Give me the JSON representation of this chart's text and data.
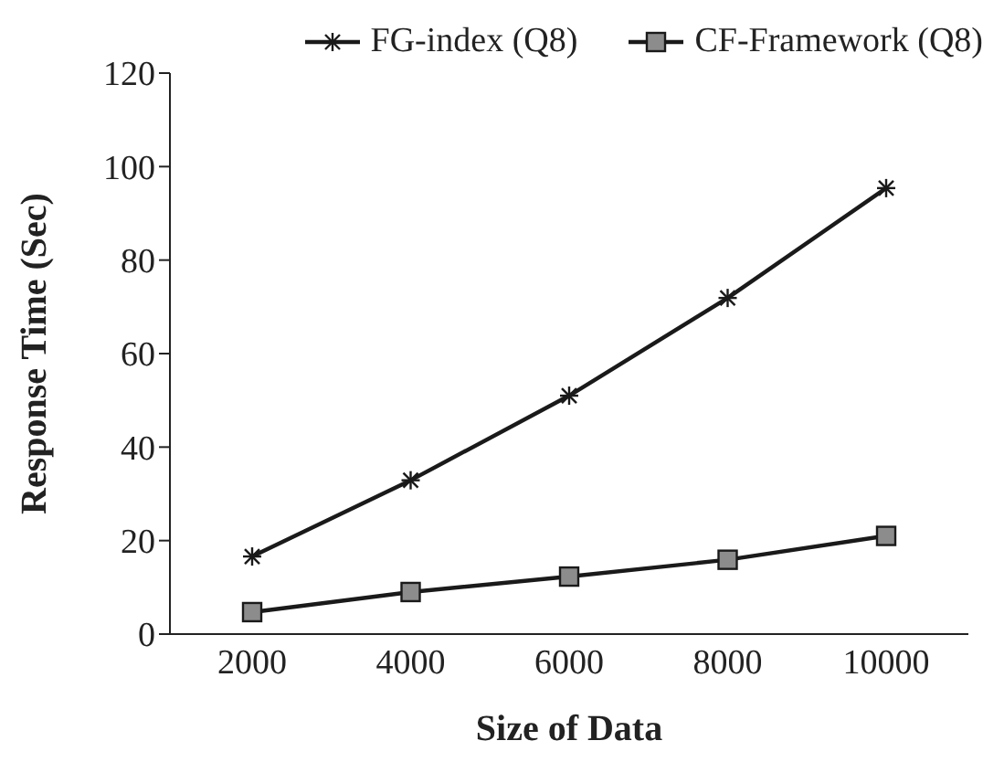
{
  "chart_data": {
    "type": "line",
    "xlabel": "Size of Data",
    "ylabel": "Response Time (Sec)",
    "categories": [
      "2000",
      "4000",
      "6000",
      "8000",
      "10000"
    ],
    "series": [
      {
        "name": "FG-index (Q8)",
        "color": "#1a1a1a",
        "marker": "cross",
        "values": [
          16.6,
          32.9,
          51,
          71.9,
          95.4
        ]
      },
      {
        "name": "CF-Framework (Q8)",
        "color": "#1a1a1a",
        "marker": "square",
        "values": [
          4.7,
          9,
          12.3,
          15.9,
          21
        ]
      }
    ],
    "ylim": [
      0,
      120
    ],
    "yticks": [
      0,
      20,
      40,
      60,
      80,
      100,
      120
    ],
    "grid": false,
    "legend": "top right",
    "line_style": "solid"
  }
}
